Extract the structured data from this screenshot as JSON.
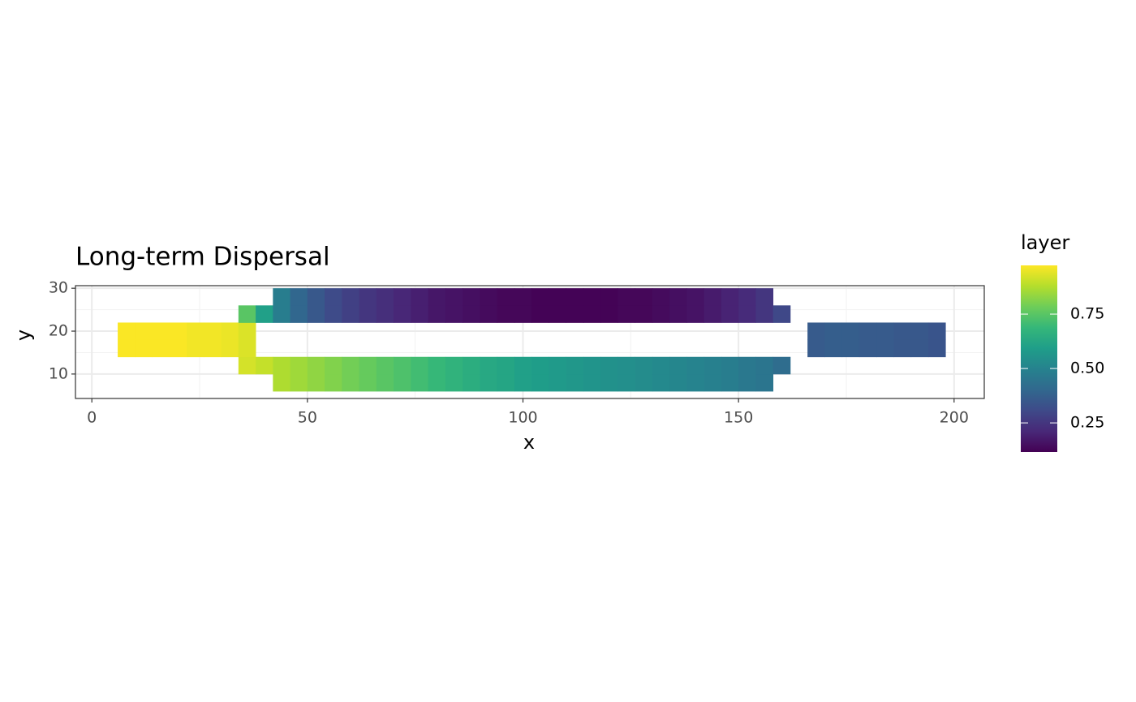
{
  "chart_data": {
    "type": "raster",
    "title": "Long-term Dispersal",
    "x_label": "x",
    "y_label": "y",
    "legend_title": "layer",
    "colormap": "viridis",
    "colorlim": [
      0.116,
      0.974
    ],
    "colorticks": [
      0.25,
      {
        "value": 0.5,
        "label": "0.50"
      },
      0.75
    ],
    "xlim": [
      -3.8,
      207
    ],
    "ylim": [
      4.3,
      30.6
    ],
    "xticks": [
      0,
      50,
      100,
      150,
      200
    ],
    "yticks": [
      10,
      20,
      30
    ],
    "xminor": [
      25,
      75,
      125,
      175
    ],
    "yminor": [
      15,
      25
    ],
    "grid": true,
    "x": [
      8,
      12,
      16,
      20,
      24,
      28,
      32,
      36,
      40,
      44,
      48,
      52,
      56,
      60,
      64,
      68,
      72,
      76,
      80,
      84,
      88,
      92,
      96,
      100,
      104,
      108,
      112,
      116,
      120,
      124,
      128,
      132,
      136,
      140,
      144,
      148,
      152,
      156,
      160,
      164,
      168,
      172,
      176,
      180,
      184,
      188,
      192,
      196
    ],
    "y": [
      8,
      12,
      16,
      20,
      24,
      28
    ],
    "values": [
      [
        null,
        null,
        null,
        null,
        null,
        null,
        null,
        null,
        null,
        0.87,
        0.85,
        0.83,
        0.81,
        0.79,
        0.77,
        0.75,
        0.73,
        0.71,
        0.69,
        0.67,
        0.65,
        0.63,
        0.62,
        0.6,
        0.59,
        0.58,
        0.57,
        0.56,
        0.55,
        0.54,
        0.53,
        0.52,
        0.51,
        0.5,
        0.49,
        0.48,
        0.46,
        0.45,
        null,
        null,
        null,
        null,
        null,
        null,
        null,
        null,
        null,
        null
      ],
      [
        null,
        null,
        null,
        null,
        null,
        null,
        null,
        0.92,
        0.9,
        0.87,
        0.85,
        0.83,
        0.81,
        0.79,
        0.77,
        0.75,
        0.73,
        0.71,
        0.69,
        0.67,
        0.65,
        0.63,
        0.62,
        0.6,
        0.59,
        0.58,
        0.57,
        0.56,
        0.55,
        0.54,
        0.53,
        0.52,
        0.51,
        0.5,
        0.49,
        0.48,
        0.46,
        0.45,
        0.42,
        null,
        null,
        null,
        null,
        null,
        null,
        null,
        null,
        null
      ],
      [
        0.97,
        0.97,
        0.97,
        0.97,
        0.96,
        0.96,
        0.95,
        0.93,
        null,
        null,
        null,
        null,
        null,
        null,
        null,
        null,
        null,
        null,
        null,
        null,
        null,
        null,
        null,
        null,
        null,
        null,
        null,
        null,
        null,
        null,
        null,
        null,
        null,
        null,
        null,
        null,
        null,
        null,
        null,
        null,
        0.36,
        0.37,
        0.37,
        0.36,
        0.36,
        0.35,
        0.35,
        0.34
      ],
      [
        0.97,
        0.97,
        0.97,
        0.97,
        0.96,
        0.96,
        0.95,
        0.93,
        null,
        null,
        null,
        null,
        null,
        null,
        null,
        null,
        null,
        null,
        null,
        null,
        null,
        null,
        null,
        null,
        null,
        null,
        null,
        null,
        null,
        null,
        null,
        null,
        null,
        null,
        null,
        null,
        null,
        null,
        null,
        null,
        0.36,
        0.37,
        0.37,
        0.36,
        0.36,
        0.35,
        0.35,
        0.34
      ],
      [
        null,
        null,
        null,
        null,
        null,
        null,
        null,
        0.75,
        0.6,
        0.48,
        0.4,
        0.35,
        0.31,
        0.28,
        0.25,
        0.23,
        0.21,
        0.19,
        0.17,
        0.16,
        0.15,
        0.14,
        0.13,
        0.13,
        0.12,
        0.12,
        0.12,
        0.12,
        0.12,
        0.13,
        0.13,
        0.14,
        0.15,
        0.16,
        0.18,
        0.2,
        0.22,
        0.25,
        0.3,
        null,
        null,
        null,
        null,
        null,
        null,
        null,
        null,
        null
      ],
      [
        null,
        null,
        null,
        null,
        null,
        null,
        null,
        null,
        null,
        0.48,
        0.4,
        0.35,
        0.31,
        0.28,
        0.25,
        0.23,
        0.21,
        0.19,
        0.17,
        0.16,
        0.15,
        0.14,
        0.13,
        0.13,
        0.12,
        0.12,
        0.12,
        0.12,
        0.12,
        0.13,
        0.13,
        0.14,
        0.15,
        0.16,
        0.18,
        0.2,
        0.22,
        0.25,
        null,
        null,
        null,
        null,
        null,
        null,
        null,
        null,
        null,
        null
      ]
    ]
  }
}
